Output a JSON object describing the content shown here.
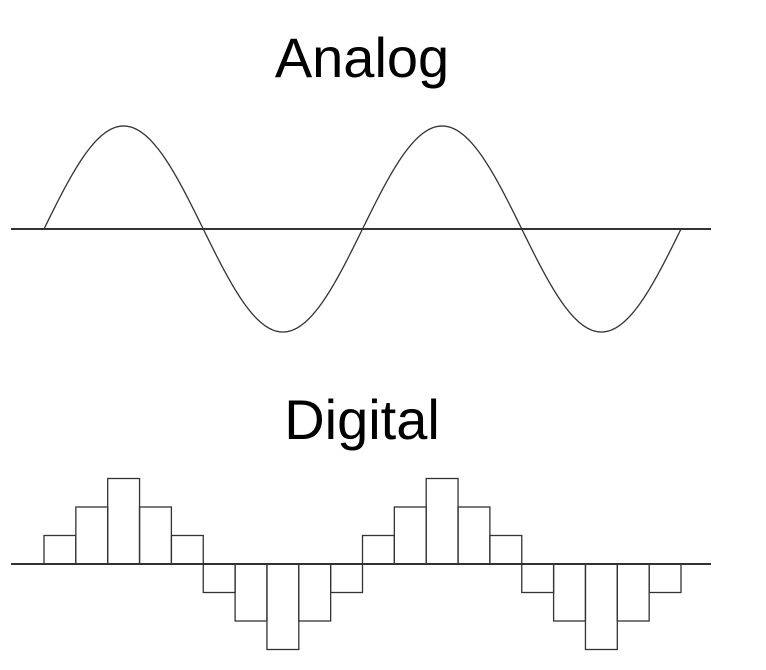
{
  "analog": {
    "title": "Analog",
    "wave": "sine",
    "cycles": 2,
    "line_color": "#333333"
  },
  "digital": {
    "title": "Digital",
    "wave": "stepped",
    "cycles": 2,
    "levels": [
      1,
      2,
      3,
      2,
      1,
      -1,
      -2,
      -3,
      -2,
      -1,
      1,
      2,
      3,
      2,
      1,
      -1,
      -2,
      -3,
      -2,
      -1
    ],
    "line_color": "#333333"
  }
}
